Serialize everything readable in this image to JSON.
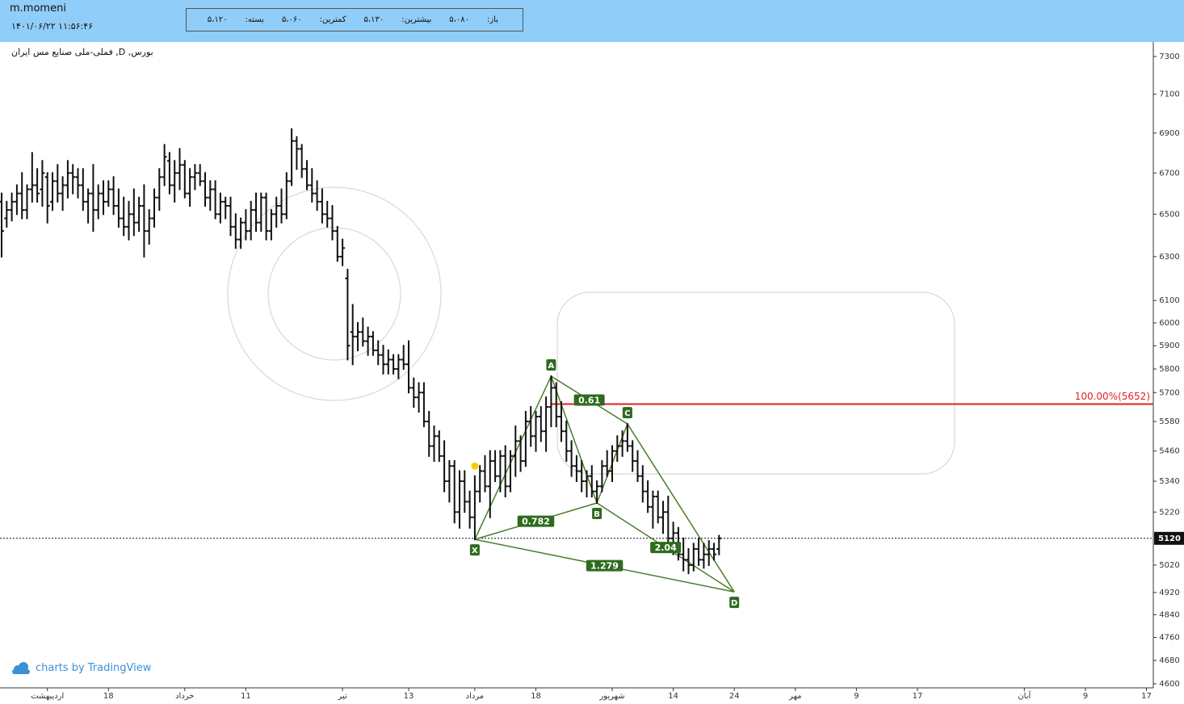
{
  "header": {
    "user": "m.momeni",
    "datetime": "۱۴۰۱/۰۶/۲۲ ۱۱:۵۶:۴۶",
    "fields": [
      {
        "label": "باز:",
        "value": "۵،۰۸۰"
      },
      {
        "label": "بیشترین:",
        "value": "۵،۱۳۰"
      },
      {
        "label": "کمترین:",
        "value": "۵،۰۶۰"
      },
      {
        "label": "بسته:",
        "value": "۵،۱۲۰"
      }
    ]
  },
  "chart_data": {
    "type": "ohlc",
    "title": "بورس, D, فملی-ملی صنایع مس ایران",
    "credit": "charts by TradingView",
    "log": true,
    "grid": false,
    "color": "#111111",
    "ylim": [
      4600,
      7300
    ],
    "yticks": [
      7300,
      7100,
      6900,
      6700,
      6500,
      6300,
      6100,
      6000,
      5900,
      5800,
      5700,
      5580,
      5460,
      5340,
      5220,
      5020,
      4920,
      4840,
      4760,
      4680,
      4600
    ],
    "last_price": 5120,
    "categories": [
      null,
      null,
      null,
      null,
      null,
      null,
      null,
      null,
      null,
      "اردیبهشت",
      null,
      null,
      null,
      null,
      null,
      null,
      null,
      null,
      null,
      null,
      null,
      "18",
      null,
      null,
      null,
      null,
      null,
      null,
      null,
      null,
      null,
      null,
      null,
      null,
      null,
      null,
      "خرداد",
      null,
      null,
      null,
      null,
      null,
      null,
      null,
      null,
      null,
      null,
      null,
      "11",
      null,
      null,
      null,
      null,
      null,
      null,
      null,
      null,
      null,
      null,
      null,
      null,
      null,
      null,
      null,
      null,
      null,
      null,
      "تیر",
      null,
      null,
      null,
      null,
      null,
      null,
      null,
      null,
      null,
      null,
      null,
      null,
      "13",
      null,
      null,
      null,
      null,
      null,
      null,
      null,
      null,
      null,
      null,
      null,
      null,
      "مرداد",
      null,
      null,
      null,
      null,
      null,
      null,
      null,
      null,
      null,
      null,
      null,
      "18",
      null,
      null,
      null,
      null,
      null,
      null,
      null,
      null,
      null,
      null,
      null,
      null,
      null,
      null,
      "شهریور",
      null,
      null,
      null,
      null,
      null,
      null,
      null,
      null,
      null,
      null,
      null,
      "14",
      null,
      null,
      null,
      null,
      null,
      null,
      null,
      null,
      null,
      null,
      null,
      "24",
      null,
      null,
      null,
      null,
      null,
      null,
      null,
      null,
      null,
      null,
      null,
      "مهر",
      null,
      null,
      null,
      null,
      null,
      null,
      null,
      null,
      null,
      null,
      null,
      "9",
      null,
      null,
      null,
      null,
      null,
      null,
      null,
      null,
      null,
      null,
      null,
      "17",
      null,
      null,
      null,
      null,
      null,
      null,
      null,
      null,
      null,
      null,
      null,
      null,
      null,
      null,
      null,
      null,
      null,
      null,
      null,
      null,
      "آبان",
      null,
      null,
      null,
      null,
      null,
      null,
      null,
      null,
      null,
      null,
      null,
      "9",
      null,
      null,
      null,
      null,
      null,
      null,
      null,
      null,
      null,
      null,
      null,
      "17"
    ],
    "open": [
      6560,
      6480,
      6520,
      6560,
      6600,
      6520,
      6620,
      6640,
      6620,
      6680,
      6560,
      6660,
      6600,
      6640,
      6700,
      6680,
      6640,
      6560,
      6600,
      6520,
      6600,
      6560,
      6620,
      6540,
      6480,
      6440,
      6500,
      6460,
      6540,
      6420,
      6480,
      6580,
      6680,
      6760,
      6640,
      6700,
      6740,
      6600,
      6680,
      6700,
      6660,
      6580,
      6620,
      6500,
      6560,
      6540,
      6440,
      6380,
      6460,
      6420,
      6520,
      6460,
      6580,
      6420,
      6500,
      6540,
      6500,
      6660,
      6860,
      6820,
      6720,
      6640,
      6600,
      6560,
      6500,
      6480,
      6420,
      6300,
      6200,
      5960,
      5940,
      5960,
      5920,
      5940,
      5880,
      5860,
      5820,
      5840,
      5800,
      5840,
      5820,
      5720,
      5680,
      5700,
      5580,
      5480,
      5520,
      5440,
      5340,
      5400,
      5220,
      5340,
      5260,
      5200,
      5300,
      5380,
      5320,
      5420,
      5360,
      5440,
      5320,
      5440,
      5500,
      5420,
      5580,
      5520,
      5600,
      5540,
      5640,
      5720,
      5600,
      5540,
      5460,
      5400,
      5380,
      5340,
      5360,
      5300,
      5320,
      5400,
      5380,
      5460,
      5480,
      5500,
      5480,
      5420,
      5360,
      5300,
      5240,
      5280,
      5200,
      5220,
      5120,
      5140,
      5060,
      5040,
      5020,
      5080,
      5040,
      5060,
      5080,
      5080,
      null,
      null,
      null,
      null,
      null,
      null,
      null,
      null,
      null,
      null,
      null,
      null,
      null,
      null,
      null,
      null,
      null,
      null,
      null,
      null,
      null,
      null,
      null,
      null,
      null,
      null,
      null,
      null,
      null,
      null,
      null,
      null,
      null,
      null,
      null,
      null,
      null,
      null,
      null,
      null,
      null,
      null,
      null,
      null,
      null,
      null,
      null,
      null,
      null,
      null,
      null,
      null,
      null,
      null,
      null,
      null,
      null,
      null,
      null,
      null,
      null,
      null,
      null,
      null,
      null,
      null,
      null,
      null,
      null,
      null,
      null,
      null,
      null,
      null,
      null,
      null,
      null,
      null,
      null,
      null,
      null,
      null,
      null,
      null
    ],
    "high": [
      6600,
      6560,
      6600,
      6640,
      6700,
      6640,
      6800,
      6720,
      6760,
      6700,
      6700,
      6740,
      6680,
      6760,
      6740,
      6720,
      6720,
      6620,
      6740,
      6640,
      6660,
      6660,
      6680,
      6620,
      6580,
      6560,
      6620,
      6580,
      6640,
      6520,
      6620,
      6720,
      6840,
      6800,
      6760,
      6820,
      6760,
      6720,
      6740,
      6740,
      6700,
      6660,
      6660,
      6600,
      6580,
      6580,
      6500,
      6480,
      6520,
      6560,
      6600,
      6600,
      6600,
      6520,
      6580,
      6620,
      6700,
      6920,
      6880,
      6840,
      6760,
      6720,
      6660,
      6620,
      6560,
      6540,
      6440,
      6380,
      6240,
      6080,
      6000,
      6020,
      5980,
      5960,
      5920,
      5900,
      5880,
      5860,
      5860,
      5900,
      5920,
      5760,
      5740,
      5740,
      5620,
      5560,
      5540,
      5500,
      5420,
      5420,
      5380,
      5380,
      5300,
      5360,
      5400,
      5440,
      5460,
      5460,
      5460,
      5480,
      5460,
      5560,
      5520,
      5620,
      5640,
      5620,
      5640,
      5680,
      5769,
      5740,
      5660,
      5580,
      5500,
      5440,
      5420,
      5380,
      5400,
      5340,
      5420,
      5460,
      5480,
      5520,
      5540,
      5570,
      5500,
      5460,
      5400,
      5340,
      5300,
      5300,
      5260,
      5280,
      5180,
      5160,
      5120,
      5080,
      5100,
      5120,
      5100,
      5110,
      5100,
      5130,
      null,
      null,
      null,
      null,
      null,
      null,
      null,
      null,
      null,
      null,
      null,
      null,
      null,
      null,
      null,
      null,
      null,
      null,
      null,
      null,
      null,
      null,
      null,
      null,
      null,
      null,
      null,
      null,
      null,
      null,
      null,
      null,
      null,
      null,
      null,
      null,
      null,
      null,
      null,
      null,
      null,
      null,
      null,
      null,
      null,
      null,
      null,
      null,
      null,
      null,
      null,
      null,
      null,
      null,
      null,
      null,
      null,
      null,
      null,
      null,
      null,
      null,
      null,
      null,
      null,
      null,
      null,
      null,
      null,
      null,
      null,
      null,
      null,
      null,
      null,
      null,
      null,
      null,
      null,
      null,
      null,
      null,
      null,
      null
    ],
    "low": [
      6300,
      6440,
      6470,
      6500,
      6480,
      6480,
      6560,
      6560,
      6540,
      6460,
      6520,
      6560,
      6520,
      6580,
      6600,
      6580,
      6520,
      6460,
      6420,
      6480,
      6500,
      6540,
      6500,
      6440,
      6400,
      6380,
      6400,
      6420,
      6300,
      6360,
      6440,
      6520,
      6640,
      6600,
      6560,
      6620,
      6580,
      6540,
      6620,
      6640,
      6540,
      6520,
      6480,
      6460,
      6480,
      6400,
      6340,
      6340,
      6380,
      6380,
      6420,
      6420,
      6380,
      6380,
      6440,
      6460,
      6480,
      6640,
      6720,
      6680,
      6620,
      6560,
      6520,
      6460,
      6440,
      6380,
      6280,
      6260,
      5840,
      5820,
      5880,
      5900,
      5860,
      5860,
      5820,
      5780,
      5780,
      5780,
      5760,
      5800,
      5700,
      5640,
      5620,
      5560,
      5440,
      5420,
      5420,
      5300,
      5260,
      5180,
      5160,
      5220,
      5160,
      5116,
      5260,
      5300,
      5200,
      5340,
      5300,
      5280,
      5300,
      5360,
      5380,
      5400,
      5480,
      5460,
      5500,
      5460,
      5560,
      5560,
      5500,
      5420,
      5360,
      5340,
      5300,
      5280,
      5280,
      5255,
      5300,
      5360,
      5340,
      5420,
      5440,
      5460,
      5380,
      5340,
      5260,
      5220,
      5160,
      5180,
      5140,
      5100,
      5060,
      5040,
      5000,
      4990,
      5000,
      5020,
      5010,
      5020,
      5040,
      5060,
      null,
      null,
      null,
      null,
      null,
      null,
      null,
      null,
      null,
      null,
      null,
      null,
      null,
      null,
      null,
      null,
      null,
      null,
      null,
      null,
      null,
      null,
      null,
      null,
      null,
      null,
      null,
      null,
      null,
      null,
      null,
      null,
      null,
      null,
      null,
      null,
      null,
      null,
      null,
      null,
      null,
      null,
      null,
      null,
      null,
      null,
      null,
      null,
      null,
      null,
      null,
      null,
      null,
      null,
      null,
      null,
      null,
      null,
      null,
      null,
      null,
      null,
      null,
      null,
      null,
      null,
      null,
      null,
      null,
      null,
      null,
      null,
      null,
      null,
      null,
      null,
      null,
      null,
      null,
      null,
      null,
      null,
      null,
      null
    ],
    "close": [
      6420,
      6520,
      6560,
      6600,
      6520,
      6620,
      6640,
      6600,
      6700,
      6540,
      6660,
      6600,
      6640,
      6700,
      6680,
      6640,
      6560,
      6600,
      6520,
      6600,
      6560,
      6620,
      6540,
      6480,
      6440,
      6500,
      6460,
      6540,
      6420,
      6480,
      6580,
      6680,
      6780,
      6640,
      6700,
      6740,
      6600,
      6680,
      6700,
      6660,
      6580,
      6620,
      6500,
      6560,
      6540,
      6440,
      6380,
      6460,
      6420,
      6520,
      6460,
      6580,
      6420,
      6500,
      6540,
      6500,
      6660,
      6860,
      6820,
      6720,
      6640,
      6600,
      6560,
      6500,
      6480,
      6420,
      6300,
      6340,
      5900,
      5940,
      5960,
      5920,
      5940,
      5880,
      5860,
      5820,
      5840,
      5800,
      5840,
      5820,
      5720,
      5680,
      5700,
      5580,
      5480,
      5520,
      5440,
      5340,
      5400,
      5220,
      5340,
      5260,
      5200,
      5300,
      5380,
      5320,
      5420,
      5360,
      5440,
      5320,
      5440,
      5500,
      5420,
      5580,
      5520,
      5600,
      5540,
      5640,
      5720,
      5600,
      5540,
      5460,
      5400,
      5380,
      5340,
      5360,
      5300,
      5320,
      5400,
      5380,
      5460,
      5480,
      5500,
      5480,
      5420,
      5360,
      5300,
      5240,
      5280,
      5200,
      5220,
      5120,
      5140,
      5060,
      5040,
      5020,
      5080,
      5040,
      5060,
      5080,
      5060,
      5120,
      null,
      null,
      null,
      null,
      null,
      null,
      null,
      null,
      null,
      null,
      null,
      null,
      null,
      null,
      null,
      null,
      null,
      null,
      null,
      null,
      null,
      null,
      null,
      null,
      null,
      null,
      null,
      null,
      null,
      null,
      null,
      null,
      null,
      null,
      null,
      null,
      null,
      null,
      null,
      null,
      null,
      null,
      null,
      null,
      null,
      null,
      null,
      null,
      null,
      null,
      null,
      null,
      null,
      null,
      null,
      null,
      null,
      null,
      null,
      null,
      null,
      null,
      null,
      null,
      null,
      null,
      null,
      null,
      null,
      null,
      null,
      null,
      null,
      null,
      null,
      null,
      null,
      null,
      null,
      null,
      null,
      null,
      null,
      null
    ],
    "marker": {
      "index": 93,
      "value": 5400,
      "color": "#f5d000"
    },
    "level": {
      "value": 5652,
      "label": "100.00%(5652)",
      "color": "#e02020"
    },
    "pattern": {
      "color": "#4a7d2a",
      "label_color": "#2f6b1f",
      "points": [
        {
          "label": "X",
          "index": 93,
          "value": 5116
        },
        {
          "label": "A",
          "index": 108,
          "value": 5769
        },
        {
          "label": "B",
          "index": 117,
          "value": 5255
        },
        {
          "label": "C",
          "index": 123,
          "value": 5570
        },
        {
          "label": "D",
          "index": 144,
          "value": 4922
        }
      ],
      "ratios": [
        0.782,
        0.61,
        2.04,
        1.279
      ]
    }
  }
}
